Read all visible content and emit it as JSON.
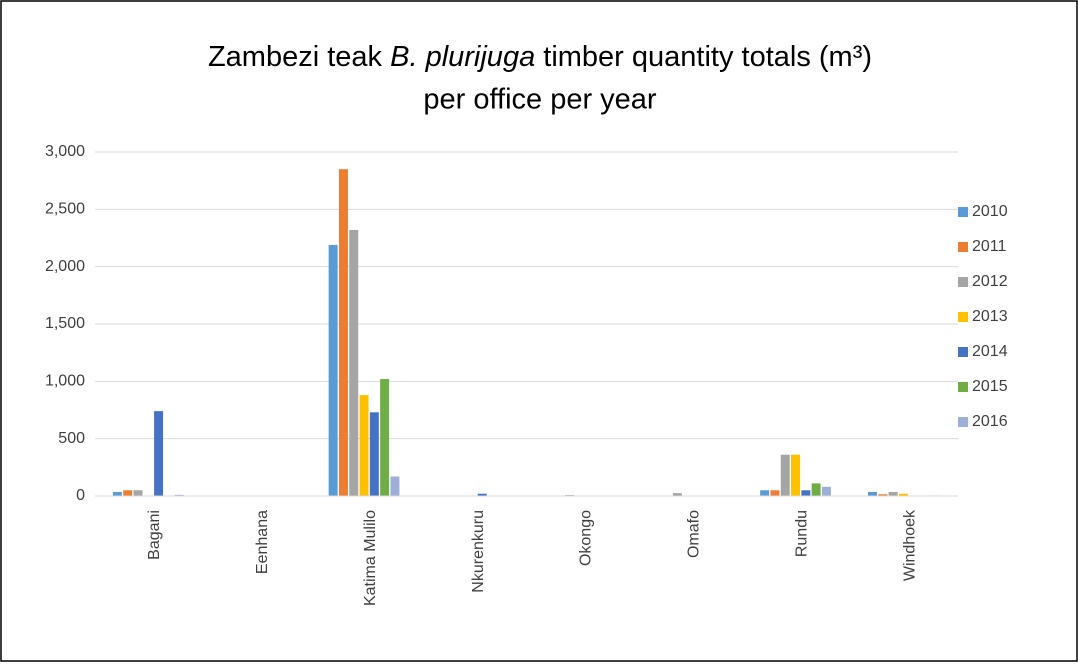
{
  "chart_data": {
    "type": "bar",
    "title": {
      "before": "Zambezi teak",
      "italic": "B. plurijuga",
      "after": "timber quantity totals (m³)",
      "line2": "per office per year"
    },
    "categories": [
      "Bagani",
      "Eenhana",
      "Katima Mulilo",
      "Nkurenkuru",
      "Okongo",
      "Omafo",
      "Rundu",
      "Windhoek"
    ],
    "series": [
      {
        "name": "2010",
        "color": "#5b9bd5",
        "values": [
          35,
          0,
          2190,
          0,
          0,
          0,
          50,
          35
        ]
      },
      {
        "name": "2011",
        "color": "#ed7d31",
        "values": [
          50,
          0,
          2850,
          0,
          0,
          0,
          50,
          15
        ]
      },
      {
        "name": "2012",
        "color": "#a5a5a5",
        "values": [
          50,
          0,
          2320,
          0,
          8,
          25,
          360,
          35
        ]
      },
      {
        "name": "2013",
        "color": "#ffc000",
        "values": [
          0,
          0,
          880,
          0,
          0,
          0,
          360,
          20
        ]
      },
      {
        "name": "2014",
        "color": "#4472c4",
        "values": [
          740,
          0,
          730,
          20,
          0,
          0,
          50,
          0
        ]
      },
      {
        "name": "2015",
        "color": "#70ad47",
        "values": [
          0,
          0,
          1020,
          0,
          0,
          0,
          110,
          0
        ]
      },
      {
        "name": "2016",
        "color": "#9dafd9",
        "values": [
          10,
          0,
          170,
          0,
          0,
          0,
          80,
          5
        ]
      }
    ],
    "ylim": [
      0,
      3000
    ],
    "yticks": [
      0,
      500,
      {
        "value": 1000,
        "label": "1,000"
      },
      {
        "value": 1500,
        "label": "1,500"
      },
      {
        "value": 2000,
        "label": "2,000"
      },
      {
        "value": 2500,
        "label": "2,500"
      },
      {
        "value": 3000,
        "label": "3,000"
      }
    ],
    "grid": true,
    "legend": "right"
  }
}
